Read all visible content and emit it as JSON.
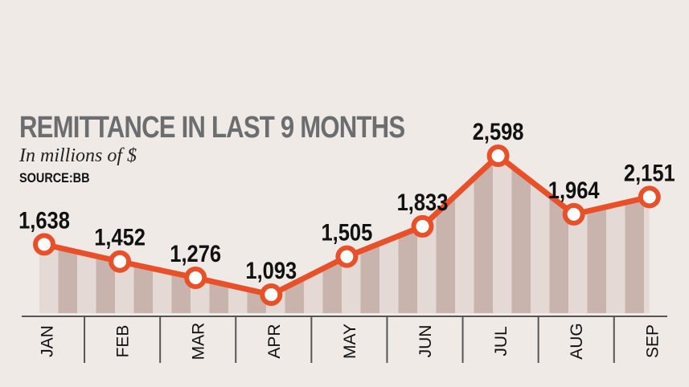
{
  "chart_data": {
    "type": "line",
    "title": "REMITTANCE IN LAST 9 MONTHS",
    "subtitle": "In millions of $",
    "source": "SOURCE:BB",
    "categories": [
      "JAN",
      "FEB",
      "MAR",
      "APR",
      "MAY",
      "JUN",
      "JUL",
      "AUG",
      "SEP"
    ],
    "values": [
      1638,
      1452,
      1276,
      1093,
      1505,
      1833,
      2598,
      1964,
      2151
    ],
    "value_labels": [
      "1,638",
      "1,452",
      "1,276",
      "1,093",
      "1,505",
      "1,833",
      "2,598",
      "1,964",
      "2,151"
    ],
    "xlabel": "",
    "ylabel": "",
    "ylim": [
      1093,
      2598
    ],
    "grid": false,
    "legend": "none",
    "colors": {
      "line": "#e8502a",
      "area_dark": "#c8b4ac",
      "area_light": "#e4d9d4",
      "axis": "#555555",
      "title": "#6b6d6f"
    }
  }
}
